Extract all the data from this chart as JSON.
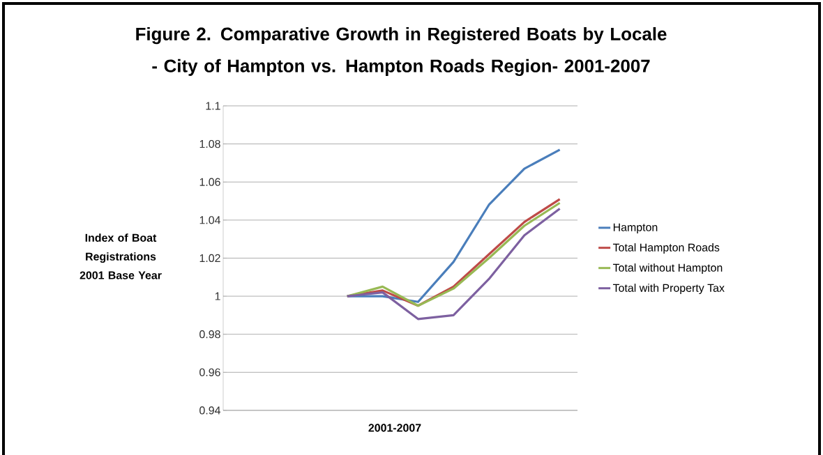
{
  "chart_data": {
    "type": "line",
    "title": "Figure 2.  Comparative Growth in Registered Boats by Locale - City of Hampton vs. Hampton Roads Region- 2001-2007",
    "xlabel": "2001-2007",
    "ylabel": "Index of Boat Registrations 2001 Base Year",
    "categories": [
      null,
      null,
      null,
      null,
      null,
      null,
      null,
      null,
      null,
      null
    ],
    "series": [
      {
        "name": "Hampton",
        "color": "#4a7ebb",
        "values": [
          null,
          null,
          null,
          1.0,
          1.0,
          0.997,
          1.018,
          1.048,
          1.067,
          1.077
        ]
      },
      {
        "name": "Total  Hampton Roads",
        "color": "#be4b48",
        "values": [
          null,
          null,
          null,
          1.0,
          1.003,
          0.995,
          1.005,
          1.022,
          1.039,
          1.051
        ]
      },
      {
        "name": "Total without Hampton",
        "color": "#98b954",
        "values": [
          null,
          null,
          null,
          1.0,
          1.005,
          0.995,
          1.004,
          1.02,
          1.037,
          1.049
        ]
      },
      {
        "name": "Total with Property Tax",
        "color": "#7d60a0",
        "values": [
          null,
          null,
          null,
          1.0,
          1.002,
          0.988,
          0.99,
          1.009,
          1.032,
          1.046
        ]
      }
    ],
    "ylim": [
      0.94,
      1.1
    ],
    "yticks": [
      0.94,
      0.96,
      0.98,
      1,
      1.02,
      1.04,
      1.06,
      1.08,
      1.1
    ],
    "grid": "y",
    "legend": "right",
    "marker": "none",
    "line_style": "solid"
  }
}
